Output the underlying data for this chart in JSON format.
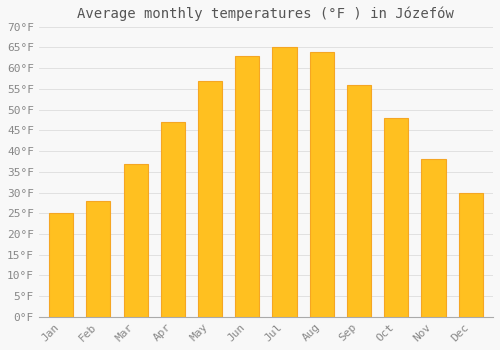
{
  "title": "Average monthly temperatures (°F ) in Józefów",
  "months": [
    "Jan",
    "Feb",
    "Mar",
    "Apr",
    "May",
    "Jun",
    "Jul",
    "Aug",
    "Sep",
    "Oct",
    "Nov",
    "Dec"
  ],
  "values": [
    25,
    28,
    37,
    47,
    57,
    63,
    65,
    64,
    56,
    48,
    38,
    30
  ],
  "bar_color_main": "#FFC020",
  "bar_color_edge": "#F5A623",
  "background_color": "#f8f8f8",
  "grid_color": "#dddddd",
  "ylim": [
    0,
    70
  ],
  "yticks": [
    0,
    5,
    10,
    15,
    20,
    25,
    30,
    35,
    40,
    45,
    50,
    55,
    60,
    65,
    70
  ],
  "ytick_labels": [
    "0°F",
    "5°F",
    "10°F",
    "15°F",
    "20°F",
    "25°F",
    "30°F",
    "35°F",
    "40°F",
    "45°F",
    "50°F",
    "55°F",
    "60°F",
    "65°F",
    "70°F"
  ],
  "title_fontsize": 10,
  "tick_fontsize": 8,
  "tick_font_color": "#888888",
  "title_color": "#555555",
  "font_family": "monospace",
  "bar_width": 0.65,
  "figsize": [
    5.0,
    3.5
  ],
  "dpi": 100
}
